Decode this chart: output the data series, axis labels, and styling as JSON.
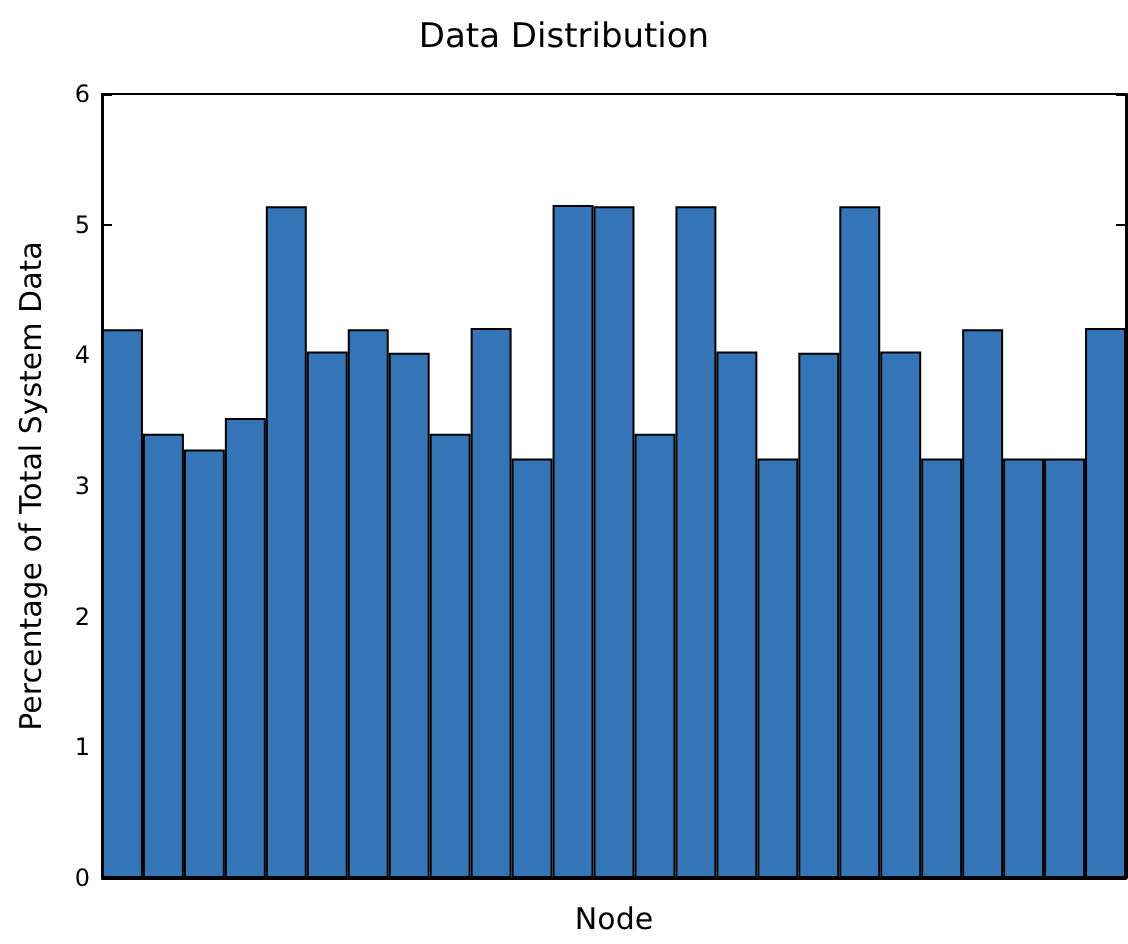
{
  "chart_data": {
    "type": "bar",
    "title": "Data Distribution",
    "xlabel": "Node",
    "ylabel": "Percentage of Total System Data",
    "categories": [
      null,
      null,
      null,
      null,
      null,
      null,
      null,
      null,
      null,
      null,
      null,
      null,
      null,
      null,
      null,
      null,
      null,
      null,
      null,
      null,
      null,
      null,
      null,
      null,
      null
    ],
    "values": [
      4.2,
      3.4,
      3.28,
      3.52,
      5.14,
      4.03,
      4.2,
      4.02,
      3.4,
      4.21,
      3.21,
      5.15,
      5.14,
      3.4,
      5.14,
      4.03,
      3.21,
      4.02,
      5.14,
      4.03,
      3.21,
      4.2,
      3.21,
      3.21,
      4.21
    ],
    "color": "#3475b8",
    "ylim": [
      0,
      6
    ],
    "yticks": [
      0,
      1,
      2,
      3,
      4,
      5,
      6
    ],
    "grid": false
  }
}
